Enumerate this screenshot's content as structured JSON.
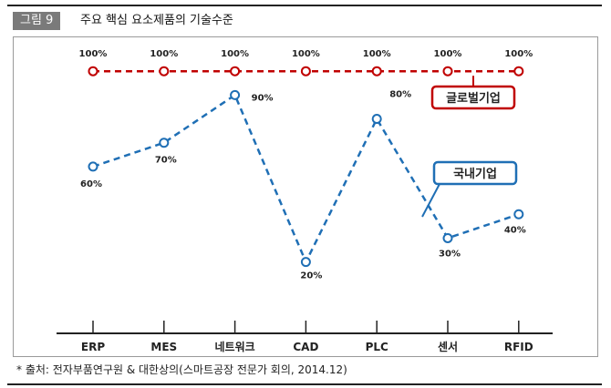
{
  "header": {
    "figure_badge": "그림 9",
    "title": "주요 핵심 요소제품의 기술수준"
  },
  "source": "* 출처: 전자부품연구원 & 대한상의(스마트공장 전문가 회의, 2014.12)",
  "chart_data": {
    "type": "line",
    "categories": [
      "ERP",
      "MES",
      "네트워크",
      "CAD",
      "PLC",
      "센서",
      "RFID"
    ],
    "series": [
      {
        "name": "글로벌기업",
        "values": [
          100,
          100,
          100,
          100,
          100,
          100,
          100
        ],
        "labels": [
          "100%",
          "100%",
          "100%",
          "100%",
          "100%",
          "100%",
          "100%"
        ],
        "color": "#c00000"
      },
      {
        "name": "국내기업",
        "values": [
          60,
          70,
          90,
          20,
          80,
          30,
          40
        ],
        "labels": [
          "60%",
          "70%",
          "90%",
          "20%",
          "80%",
          "30%",
          "40%"
        ],
        "color": "#1f6fb5"
      }
    ],
    "ylim": [
      0,
      100
    ],
    "grid": false,
    "line_style": "dashed"
  }
}
